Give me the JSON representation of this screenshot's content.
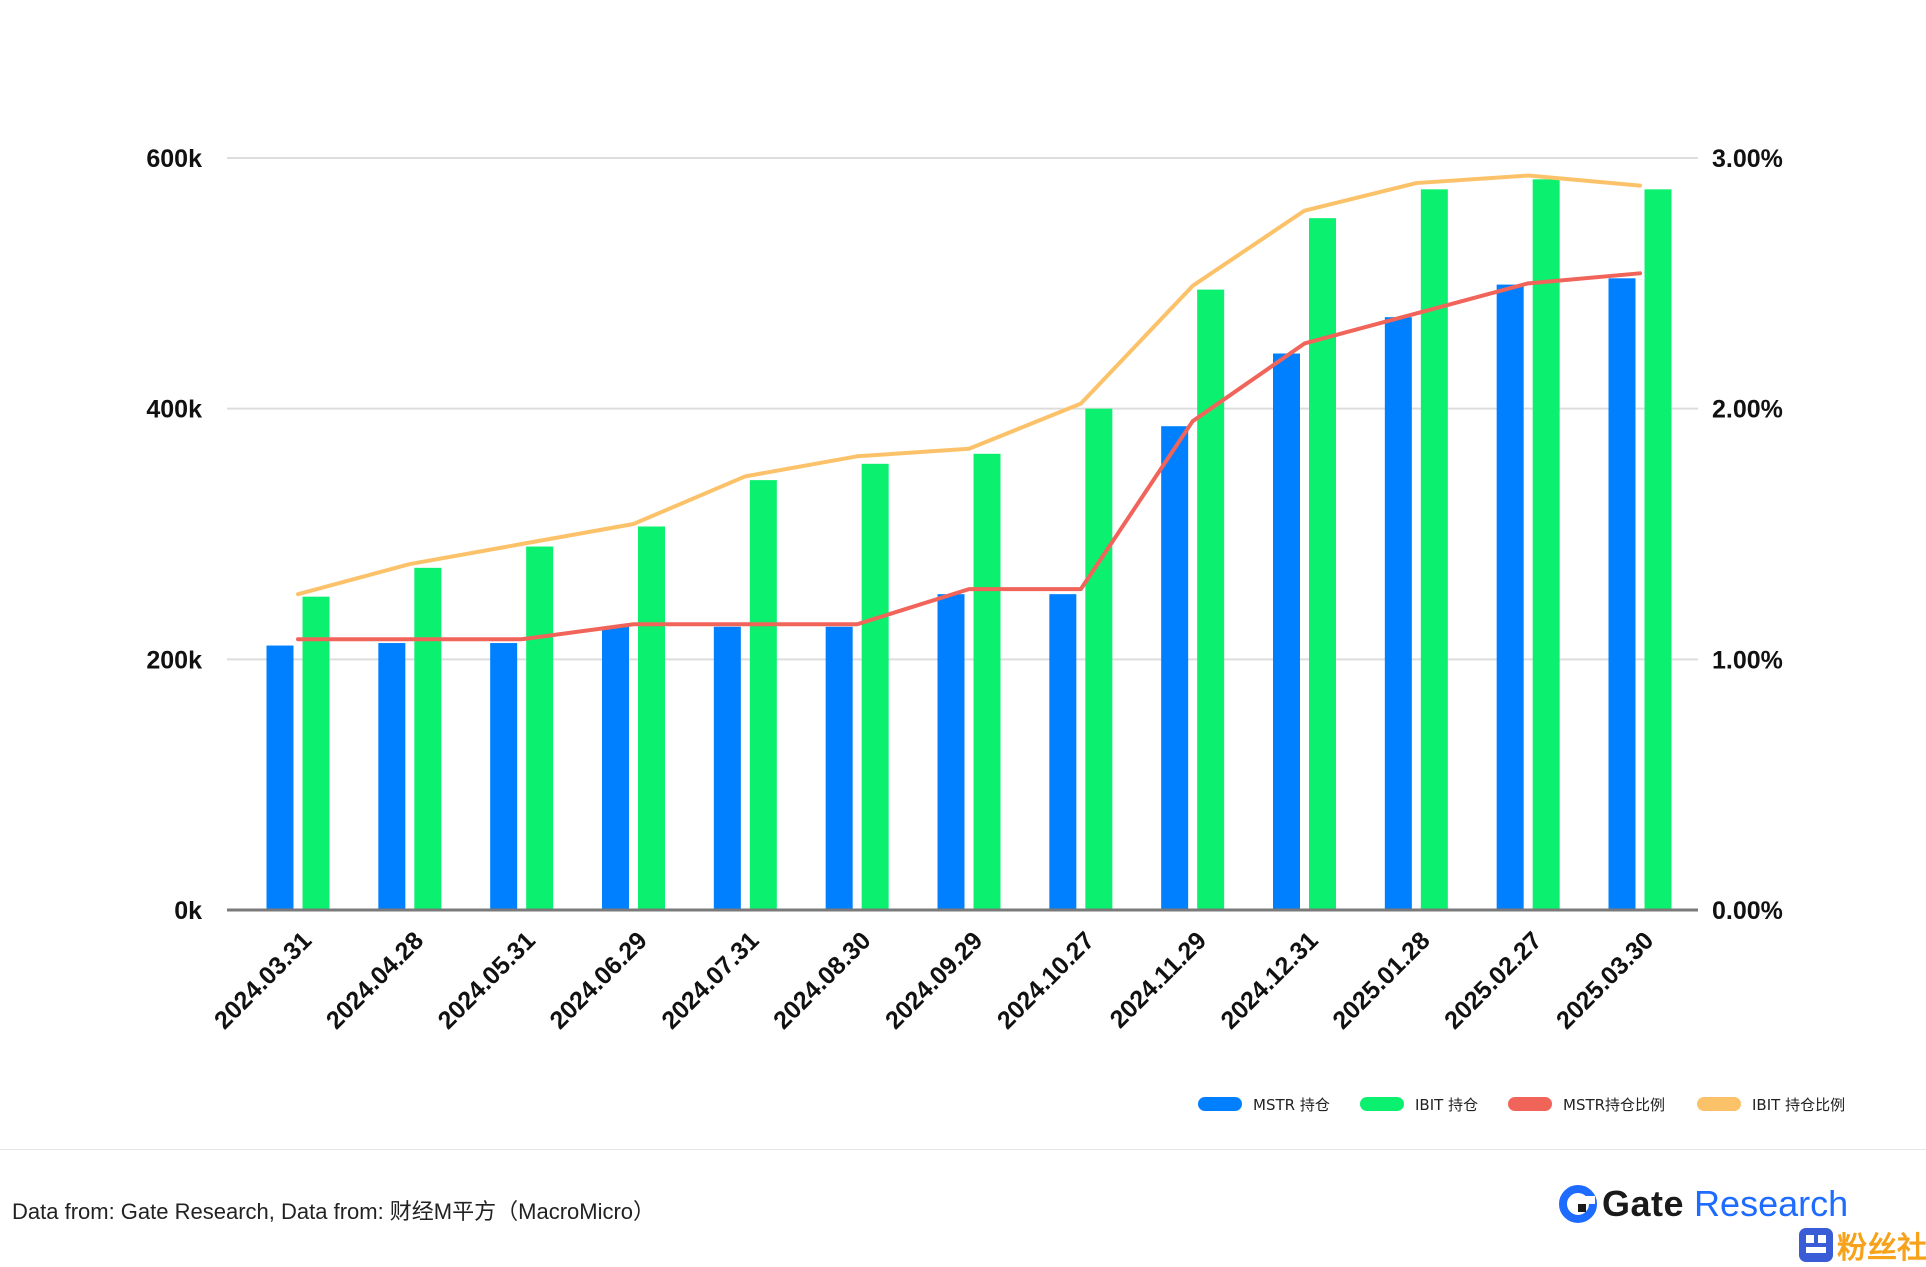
{
  "chart_data": {
    "type": "bar",
    "categories": [
      "2024.03.31",
      "2024.04.28",
      "2024.05.31",
      "2024.06.29",
      "2024.07.31",
      "2024.08.30",
      "2024.09.29",
      "2024.10.27",
      "2024.11.29",
      "2024.12.31",
      "2025.01.28",
      "2025.02.27",
      "2025.03.30"
    ],
    "series": [
      {
        "name": "MSTR 持仓",
        "kind": "bar",
        "axis": "left",
        "color": "#0080ff",
        "values": [
          211000,
          213000,
          213000,
          226000,
          226000,
          226000,
          252000,
          252000,
          386000,
          444000,
          473000,
          499000,
          504000
        ]
      },
      {
        "name": "IBIT 持仓",
        "kind": "bar",
        "axis": "left",
        "color": "#0cf070",
        "values": [
          250000,
          273000,
          290000,
          306000,
          343000,
          356000,
          364000,
          400000,
          495000,
          552000,
          575000,
          583000,
          575000
        ]
      },
      {
        "name": "MSTR持仓比例",
        "kind": "line",
        "axis": "right",
        "color": "#f0645a",
        "values": [
          1.08,
          1.08,
          1.08,
          1.14,
          1.14,
          1.14,
          1.28,
          1.28,
          1.95,
          2.26,
          2.38,
          2.5,
          2.54
        ]
      },
      {
        "name": "IBIT 持仓比例",
        "kind": "line",
        "axis": "right",
        "color": "#fcc26a",
        "values": [
          1.26,
          1.38,
          1.46,
          1.54,
          1.73,
          1.81,
          1.84,
          2.02,
          2.49,
          2.79,
          2.9,
          2.93,
          2.89
        ]
      }
    ],
    "left_axis": {
      "min": 0,
      "max": 600000,
      "ticks": [
        0,
        200000,
        400000,
        600000
      ],
      "tick_labels": [
        "0k",
        "200k",
        "400k",
        "600k"
      ]
    },
    "right_axis": {
      "min": 0,
      "max": 3,
      "ticks": [
        0,
        1,
        2,
        3
      ],
      "tick_labels": [
        "0.00%",
        "1.00%",
        "2.00%",
        "3.00%"
      ]
    },
    "grid": true,
    "legend_position": "bottom-right",
    "title": "",
    "xlabel": "",
    "ylabel": ""
  },
  "footer": {
    "source": "Data from: Gate Research, Data from: 财经M平方（MacroMicro）",
    "brand_gate": "Gate",
    "brand_research": "Research",
    "brand_color": "#1e6bff"
  },
  "watermark": {
    "text": "粉丝社区",
    "color": "#f7a21b",
    "icon_color": "#3a5cd6"
  }
}
